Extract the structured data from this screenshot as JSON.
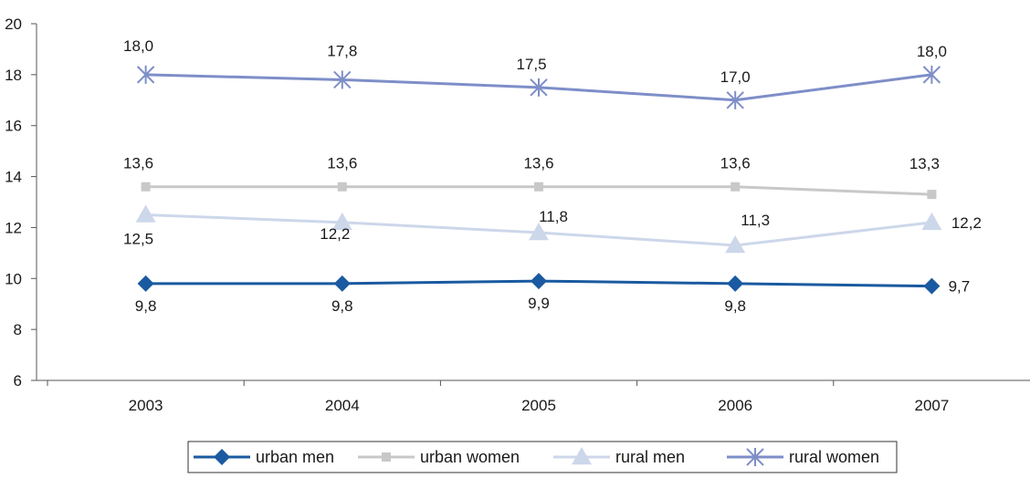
{
  "chart_data": {
    "type": "line",
    "categories": [
      "2003",
      "2004",
      "2005",
      "2006",
      "2007"
    ],
    "ylim": [
      6,
      20
    ],
    "yticks": [
      "6",
      "8",
      "10",
      "12",
      "14",
      "16",
      "18",
      "20"
    ],
    "legend_position": "bottom",
    "series": [
      {
        "name": "urban men",
        "values": [
          9.8,
          9.8,
          9.9,
          9.8,
          9.7
        ],
        "labels": [
          "9,8",
          "9,8",
          "9,9",
          "9,8",
          "9,7"
        ],
        "color": "#1a5aa0",
        "marker": "diamond"
      },
      {
        "name": "urban women",
        "values": [
          13.6,
          13.6,
          13.6,
          13.6,
          13.3
        ],
        "labels": [
          "13,6",
          "13,6",
          "13,6",
          "13,6",
          "13,3"
        ],
        "color": "#c8c8c8",
        "marker": "square"
      },
      {
        "name": "rural men",
        "values": [
          12.5,
          12.2,
          11.8,
          11.3,
          12.2
        ],
        "labels": [
          "12,5",
          "12,2",
          "11,8",
          "11,3",
          "12,2"
        ],
        "color": "#cdd7ea",
        "marker": "triangle"
      },
      {
        "name": "rural women",
        "values": [
          18.0,
          17.8,
          17.5,
          17.0,
          18.0
        ],
        "labels": [
          "18,0",
          "17,8",
          "17,5",
          "17,0",
          "18,0"
        ],
        "color": "#7e8ec8",
        "marker": "asterisk"
      }
    ]
  }
}
